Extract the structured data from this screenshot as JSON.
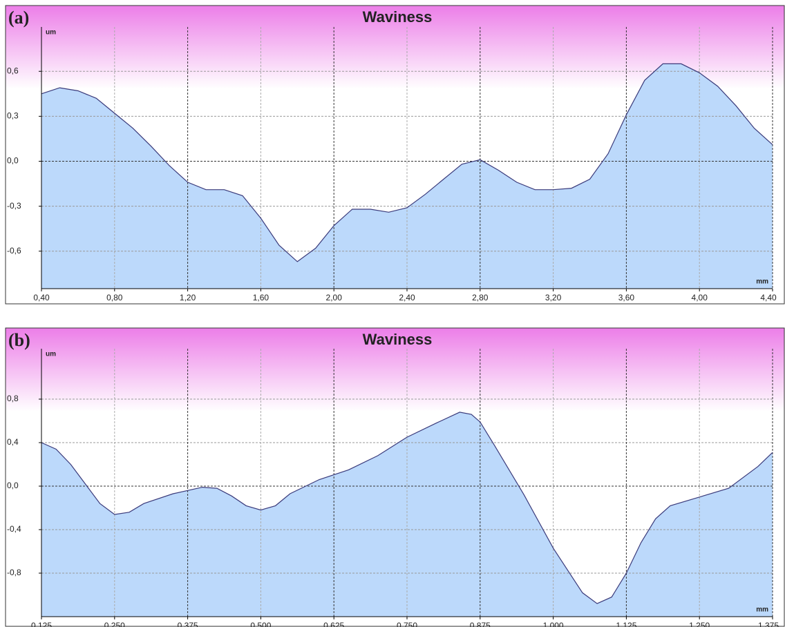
{
  "chart_data": [
    {
      "type": "area",
      "panel_label": "(a)",
      "title": "Waviness",
      "y_unit": "um",
      "x_unit": "mm",
      "color": "#bcd9fb",
      "line_color": "#3a3a7a",
      "grid": true,
      "x": [
        0.4,
        0.5,
        0.6,
        0.7,
        0.8,
        0.9,
        1.0,
        1.1,
        1.2,
        1.3,
        1.4,
        1.5,
        1.6,
        1.7,
        1.8,
        1.9,
        2.0,
        2.1,
        2.2,
        2.3,
        2.4,
        2.5,
        2.6,
        2.7,
        2.8,
        2.9,
        3.0,
        3.1,
        3.2,
        3.3,
        3.4,
        3.5,
        3.6,
        3.7,
        3.8,
        3.9,
        4.0,
        4.1,
        4.2,
        4.3,
        4.4
      ],
      "values": [
        0.45,
        0.49,
        0.47,
        0.42,
        0.32,
        0.22,
        0.1,
        -0.03,
        -0.14,
        -0.19,
        -0.19,
        -0.23,
        -0.38,
        -0.56,
        -0.67,
        -0.58,
        -0.43,
        -0.32,
        -0.32,
        -0.34,
        -0.31,
        -0.22,
        -0.12,
        -0.02,
        0.01,
        -0.06,
        -0.14,
        -0.19,
        -0.19,
        -0.18,
        -0.12,
        0.05,
        0.31,
        0.54,
        0.65,
        0.65,
        0.59,
        0.5,
        0.37,
        0.22,
        0.11
      ],
      "xlim": [
        0.4,
        4.4
      ],
      "xticks": [
        {
          "value": 0.4,
          "label": "0,40"
        },
        {
          "value": 0.8,
          "label": "0,80"
        },
        {
          "value": 1.2,
          "label": "1,20"
        },
        {
          "value": 1.6,
          "label": "1,60"
        },
        {
          "value": 2.0,
          "label": "2,00"
        },
        {
          "value": 2.4,
          "label": "2,40"
        },
        {
          "value": 2.8,
          "label": "2,80"
        },
        {
          "value": 3.2,
          "label": "3,20"
        },
        {
          "value": 3.6,
          "label": "3,60"
        },
        {
          "value": 4.0,
          "label": "4,00"
        },
        {
          "value": 4.4,
          "label": "4,40"
        }
      ],
      "ylim": [
        -0.85,
        0.85
      ],
      "yticks": [
        {
          "value": -0.6,
          "label": "-0,6"
        },
        {
          "value": -0.3,
          "label": "-0,3"
        },
        {
          "value": 0,
          "label": "0,0"
        },
        {
          "value": 0.3,
          "label": "0,3"
        },
        {
          "value": 0.6,
          "label": "0,6"
        }
      ]
    },
    {
      "type": "area",
      "panel_label": "(b)",
      "title": "Waviness",
      "y_unit": "um",
      "x_unit": "mm",
      "color": "#bcd9fb",
      "line_color": "#3a3a7a",
      "grid": true,
      "x": [
        0.125,
        0.15,
        0.175,
        0.2,
        0.225,
        0.25,
        0.275,
        0.3,
        0.35,
        0.4,
        0.425,
        0.45,
        0.475,
        0.5,
        0.525,
        0.55,
        0.6,
        0.65,
        0.7,
        0.75,
        0.8,
        0.84,
        0.86,
        0.875,
        0.9,
        0.95,
        1.0,
        1.05,
        1.075,
        1.1,
        1.125,
        1.15,
        1.175,
        1.2,
        1.25,
        1.3,
        1.35,
        1.375
      ],
      "values": [
        0.4,
        0.34,
        0.2,
        0.02,
        -0.16,
        -0.26,
        -0.24,
        -0.16,
        -0.07,
        -0.01,
        -0.02,
        -0.09,
        -0.18,
        -0.22,
        -0.18,
        -0.07,
        0.06,
        0.15,
        0.28,
        0.45,
        0.58,
        0.68,
        0.66,
        0.59,
        0.37,
        -0.08,
        -0.57,
        -0.98,
        -1.08,
        -1.02,
        -0.8,
        -0.52,
        -0.3,
        -0.18,
        -0.1,
        -0.02,
        0.18,
        0.31
      ],
      "xlim": [
        0.125,
        1.375
      ],
      "xticks": [
        {
          "value": 0.125,
          "label": "0,125"
        },
        {
          "value": 0.25,
          "label": "0,250"
        },
        {
          "value": 0.375,
          "label": "0,375"
        },
        {
          "value": 0.5,
          "label": "0,500"
        },
        {
          "value": 0.625,
          "label": "0,625"
        },
        {
          "value": 0.75,
          "label": "0,750"
        },
        {
          "value": 0.875,
          "label": "0,875"
        },
        {
          "value": 1.0,
          "label": "1,000"
        },
        {
          "value": 1.125,
          "label": "1,125"
        },
        {
          "value": 1.25,
          "label": "1,250"
        },
        {
          "value": 1.375,
          "label": "1,375"
        }
      ],
      "ylim": [
        -1.2,
        1.2
      ],
      "yticks": [
        {
          "value": -0.8,
          "label": "-0,8"
        },
        {
          "value": -0.4,
          "label": "-0,4"
        },
        {
          "value": 0,
          "label": "0,0"
        },
        {
          "value": 0.4,
          "label": "0,4"
        },
        {
          "value": 0.8,
          "label": "0,8"
        }
      ]
    }
  ]
}
